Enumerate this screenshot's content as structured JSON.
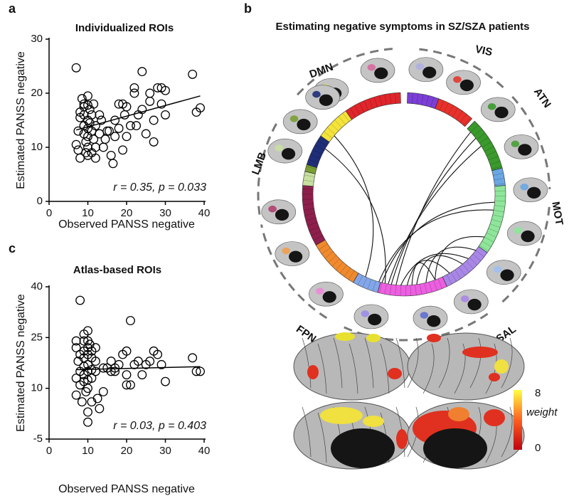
{
  "panels": [
    "a",
    "b",
    "c"
  ],
  "chart_data": [
    {
      "type": "scatter",
      "title": "Individualized ROIs",
      "xlabel": "Observed PANSS negative",
      "ylabel": "Estimated PANSS negative",
      "xlim": [
        0,
        40
      ],
      "xticks": [
        0,
        10,
        20,
        30,
        40
      ],
      "ylim": [
        0,
        30
      ],
      "yticks": [
        0,
        10,
        20,
        30
      ],
      "annotation": "r = 0.35, p = 0.033",
      "x": [
        7,
        8,
        8,
        7.5,
        7,
        7.5,
        8,
        8.5,
        9,
        9,
        9,
        9,
        9,
        9.5,
        9.5,
        10,
        10,
        10,
        10,
        10,
        10,
        10,
        10.5,
        10.5,
        11,
        11,
        11,
        11.5,
        11.5,
        12,
        12,
        12,
        13,
        13,
        13.5,
        14,
        14.5,
        15,
        15.5,
        16,
        16.5,
        17,
        17,
        18,
        18,
        19,
        19,
        19.5,
        20,
        20,
        21,
        22,
        22,
        22.5,
        23,
        24,
        24,
        25,
        26,
        26,
        27,
        27,
        28,
        29,
        29,
        30,
        30,
        37,
        38,
        39
      ],
      "values": [
        24.7,
        16.5,
        15.5,
        13,
        10.5,
        9.5,
        8,
        19,
        18,
        17.5,
        16,
        14,
        12.5,
        11,
        9,
        19.5,
        17.8,
        15,
        13.5,
        12,
        10,
        8.5,
        17,
        14.5,
        16,
        13,
        9,
        18,
        11.5,
        14,
        10,
        8,
        16,
        12.5,
        15,
        10,
        11.5,
        13,
        13,
        8.5,
        7,
        15,
        12,
        18,
        13.5,
        18,
        9.5,
        16,
        17.5,
        12,
        14,
        21,
        20,
        14,
        16,
        24,
        17,
        12.5,
        20,
        18.5,
        11,
        15,
        21,
        18,
        21,
        20.5,
        16,
        23.5,
        16.5,
        17.3
      ],
      "fit_line": {
        "x": [
          7,
          39
        ],
        "values": [
          13.2,
          19.5
        ]
      }
    },
    {
      "type": "scatter",
      "title": "Atlas-based ROIs",
      "xlabel": "Observed PANSS negative",
      "ylabel": "Estimated PANSS negative",
      "xlim": [
        0,
        40
      ],
      "xticks": [
        0,
        10,
        20,
        30,
        40
      ],
      "ylim": [
        -5,
        40
      ],
      "yticks": [
        -5,
        10,
        25,
        40
      ],
      "annotation": "r = 0.03, p = 0.403",
      "x": [
        8,
        7,
        7,
        8,
        7.5,
        8,
        7,
        8,
        7,
        8.5,
        9,
        9,
        9,
        9,
        9,
        9,
        9,
        9.5,
        10,
        10,
        10,
        10,
        10,
        10,
        10,
        10,
        10,
        10,
        10.5,
        11,
        11,
        11,
        11,
        11,
        12,
        12,
        12,
        12.5,
        13,
        14,
        14,
        15,
        16,
        16,
        17,
        17,
        18,
        19,
        20,
        20,
        20,
        21,
        21,
        22,
        23,
        24,
        25,
        26,
        27,
        28,
        29,
        30,
        37,
        38,
        39
      ],
      "values": [
        36,
        24,
        22,
        20,
        18,
        15,
        13,
        11,
        8,
        6,
        26,
        24,
        21,
        19,
        16.5,
        14,
        12,
        9,
        27,
        24,
        22,
        20,
        17,
        15,
        12.5,
        10,
        3,
        0,
        23,
        21,
        19,
        15.5,
        13,
        6,
        22,
        18,
        15,
        7,
        4,
        16,
        9,
        16,
        15,
        18,
        16,
        15,
        17,
        20,
        21,
        14,
        11,
        11,
        30,
        17,
        18,
        14,
        17,
        18,
        21,
        20,
        17,
        12,
        19,
        15,
        15
      ],
      "fit_line": {
        "x": [
          7,
          39
        ],
        "values": [
          15.5,
          16.4
        ]
      }
    }
  ],
  "diagram": {
    "title": "Estimating negative symptoms in SZ/SZA patients",
    "networks": [
      "DMN",
      "VIS",
      "ATN",
      "MOT",
      "SAL",
      "FPN",
      "LMB"
    ],
    "colorbar": {
      "ticks": [
        8,
        0
      ],
      "label": "weight"
    }
  }
}
